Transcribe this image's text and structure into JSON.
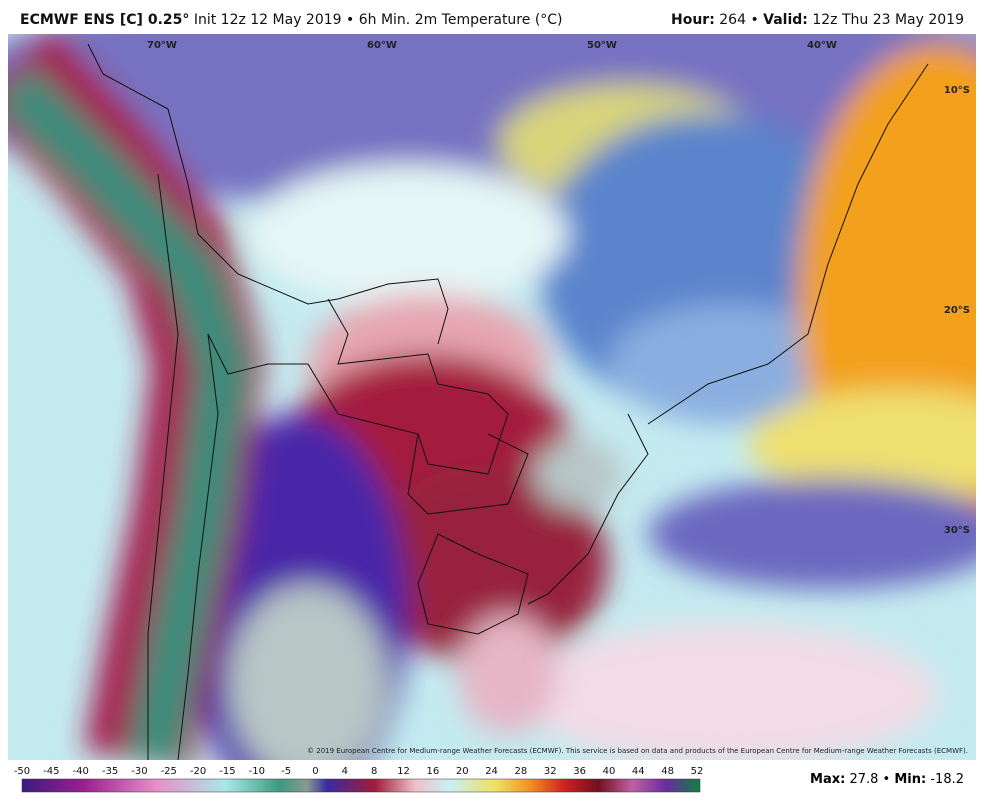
{
  "header": {
    "model": "ECMWF ENS [C] 0.25°",
    "description": "Init 12z 12 May 2019 • 6h Min. 2m Temperature (°C)",
    "hour_label": "Hour:",
    "hour_value": 264,
    "separator": "•",
    "valid_label": "Valid:",
    "valid_value": "12z Thu 23 May 2019"
  },
  "map": {
    "longitude_labels": [
      "70°W",
      "60°W",
      "50°W",
      "40°W"
    ],
    "latitude_labels": [
      "10°S",
      "20°S",
      "30°S"
    ],
    "copyright": "© 2019 European Centre for Medium-range Weather Forecasts (ECMWF). This service is based on data and products of the European Centre for Medium-range Weather Forecasts (ECMWF)."
  },
  "colorbar": {
    "ticks": [
      -50,
      -45,
      -40,
      -35,
      -30,
      -25,
      -20,
      -15,
      -10,
      -5,
      0,
      4,
      8,
      12,
      16,
      20,
      24,
      28,
      32,
      36,
      40,
      44,
      48,
      52
    ]
  },
  "footer": {
    "max_label": "Max:",
    "max_value": 27.8,
    "separator": "•",
    "min_label": "Min:",
    "min_value": -18.2
  }
}
